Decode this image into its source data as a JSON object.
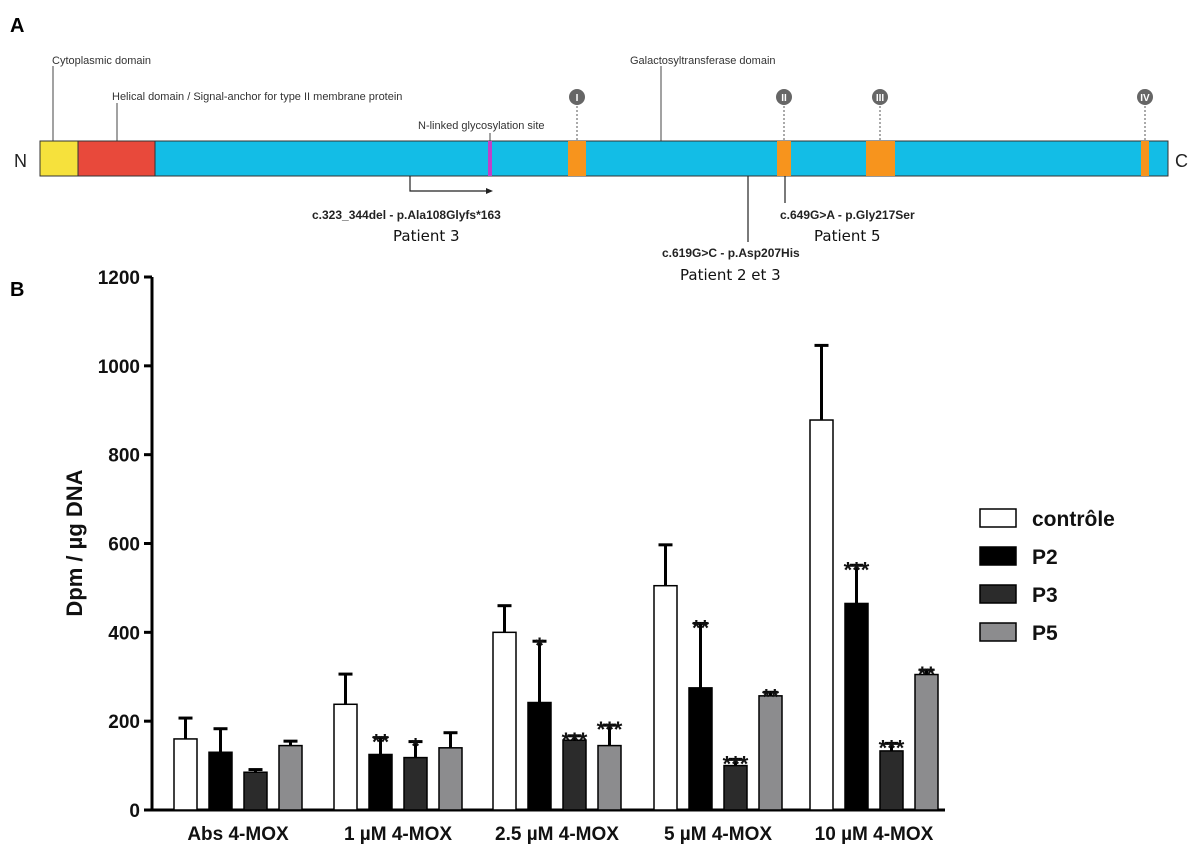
{
  "panelA": {
    "letter": "A",
    "n_term": "N",
    "c_term": "C",
    "colors": {
      "cytoplasmic": "#f6e13c",
      "helical": "#e8493b",
      "galactosyl": "#13bde6",
      "motif": "#f7941d",
      "glyco": "#c040c8",
      "roman_circle": "#666666"
    },
    "domain_labels": {
      "cytoplasmic": "Cytoplasmic domain",
      "helical": "Helical domain / Signal-anchor for type II membrane protein",
      "glyco": "N-linked glycosylation site",
      "galactosyl": "Galactosyltransferase domain"
    },
    "motifs": [
      "I",
      "II",
      "III",
      "IV"
    ],
    "mutations": [
      {
        "label": "c.323_344del - p.Ala108Glyfs*163",
        "patient": "Patient 3"
      },
      {
        "label": "c.619G>C - p.Asp207His",
        "patient": "Patient 2 et 3"
      },
      {
        "label": "c.649G>A - p.Gly217Ser",
        "patient": "Patient 5"
      }
    ]
  },
  "panelB": {
    "letter": "B"
  },
  "chart_data": {
    "type": "bar",
    "title": "",
    "xlabel": "",
    "ylabel": "Dpm / µg DNA",
    "ylim": [
      0,
      1200
    ],
    "yticks": [
      "0",
      "200",
      "400",
      "600",
      "800",
      "1000",
      "1200"
    ],
    "grid": false,
    "legend_position": "right",
    "categories": [
      "Abs 4-MOX",
      "1 µM 4-MOX",
      "2.5 µM 4-MOX",
      "5 µM 4-MOX",
      "10 µM 4-MOX"
    ],
    "series": [
      {
        "name": "contrôle",
        "color": "#ffffff",
        "values": [
          160,
          238,
          400,
          505,
          878
        ],
        "errors": [
          47,
          68,
          60,
          92,
          168
        ],
        "significance": [
          "",
          "",
          "",
          "",
          ""
        ]
      },
      {
        "name": "P2",
        "color": "#000000",
        "values": [
          130,
          125,
          242,
          275,
          465
        ],
        "errors": [
          53,
          38,
          138,
          145,
          86
        ],
        "significance": [
          "",
          "**",
          "*",
          "**",
          "***"
        ]
      },
      {
        "name": "P3",
        "color": "#2b2b2b",
        "values": [
          85,
          118,
          157,
          100,
          133
        ],
        "errors": [
          6,
          36,
          10,
          14,
          17
        ],
        "significance": [
          "",
          "*",
          "***",
          "***",
          "***"
        ]
      },
      {
        "name": "P5",
        "color": "#8c8c8e",
        "values": [
          145,
          140,
          145,
          257,
          305
        ],
        "errors": [
          10,
          34,
          46,
          8,
          10
        ],
        "significance": [
          "",
          "",
          "***",
          "**",
          "**"
        ]
      }
    ]
  }
}
